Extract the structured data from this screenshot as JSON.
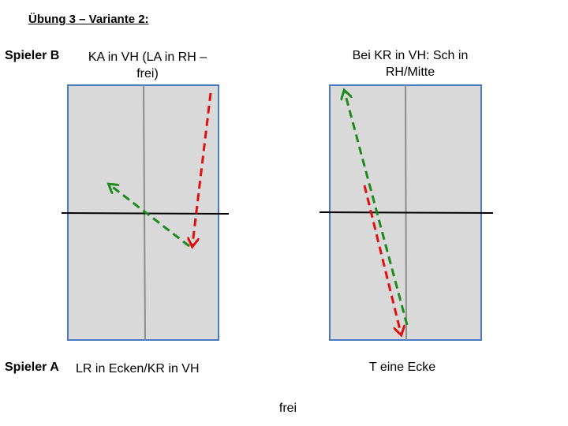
{
  "title": "Übung 3 – Variante 2:",
  "left": {
    "player_top": "Spieler B",
    "caption_top": "KA in VH (LA in RH –\nfrei)",
    "player_bottom": "Spieler A",
    "caption_bottom": "LR in Ecken/KR in VH"
  },
  "right": {
    "caption_top": "Bei KR in VH: Sch in\nRH/Mitte",
    "caption_bottom": "T eine Ecke"
  },
  "footer": "frei",
  "colors": {
    "court_fill": "#d9d9d9",
    "court_border": "#4a7abf",
    "center_line": "#8c8c8c",
    "net": "#000000",
    "arrow_green": "#1e8a1e",
    "arrow_red": "#e01010"
  }
}
